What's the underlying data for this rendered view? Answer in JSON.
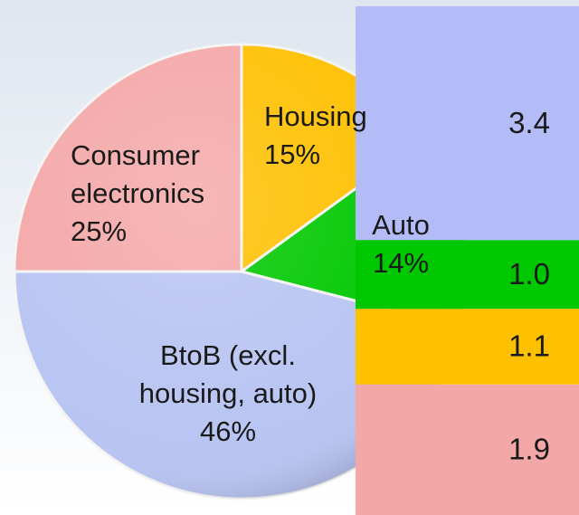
{
  "chart_data": [
    {
      "type": "pie",
      "categories": [
        "Housing",
        "Auto",
        "BtoB (excl. housing, auto)",
        "Consumer electronics"
      ],
      "values": [
        15,
        14,
        46,
        25
      ],
      "value_labels": [
        "15%",
        "14%",
        "46%",
        "25%"
      ],
      "colors": [
        "#ffc000",
        "#00c800",
        "#b8c4f2",
        "#f4a7a7"
      ]
    },
    {
      "type": "stacked_bar",
      "values": [
        1.9,
        1.1,
        1.0,
        3.4
      ],
      "value_labels": [
        "1.9",
        "1.1",
        "1.0",
        "3.4"
      ],
      "colors": [
        "#f4a7a7",
        "#ffc000",
        "#00c800",
        "#b4bcf8"
      ]
    }
  ]
}
